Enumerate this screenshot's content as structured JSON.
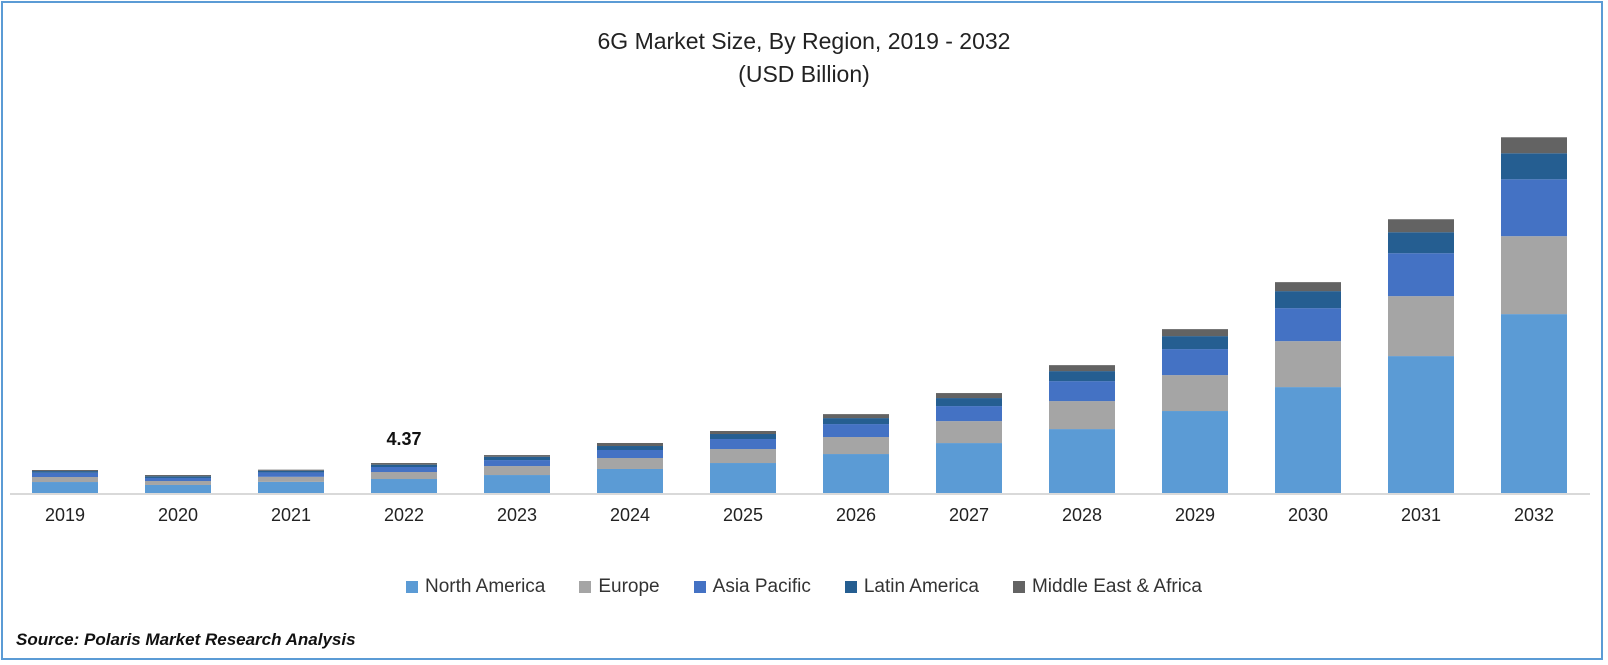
{
  "chart_data": {
    "type": "bar",
    "stacked": true,
    "title": "6G Market Size, By Region, 2019 - 2032",
    "subtitle": "(USD Billion)",
    "categories": [
      "2019",
      "2020",
      "2021",
      "2022",
      "2023",
      "2024",
      "2025",
      "2026",
      "2027",
      "2028",
      "2029",
      "2030",
      "2031",
      "2032"
    ],
    "series": [
      {
        "name": "North America",
        "color": "#5B9BD5",
        "values": [
          1.6,
          1.17,
          1.62,
          2.04,
          2.62,
          3.5,
          4.37,
          5.68,
          7.28,
          9.32,
          11.95,
          15.44,
          19.96,
          26.08
        ]
      },
      {
        "name": "Europe",
        "color": "#A5A5A5",
        "values": [
          0.73,
          0.58,
          0.74,
          1.02,
          1.31,
          1.6,
          2.04,
          2.48,
          3.2,
          4.08,
          5.24,
          6.7,
          8.74,
          11.36
        ]
      },
      {
        "name": "Asia Pacific",
        "color": "#4472C4",
        "values": [
          0.63,
          0.44,
          0.64,
          0.73,
          0.87,
          1.17,
          1.46,
          1.89,
          2.19,
          2.91,
          3.79,
          4.81,
          6.26,
          8.3
        ]
      },
      {
        "name": "Latin America",
        "color": "#255E91",
        "values": [
          0.24,
          0.24,
          0.25,
          0.34,
          0.49,
          0.58,
          0.73,
          0.87,
          1.17,
          1.46,
          1.89,
          2.48,
          3.06,
          3.79
        ]
      },
      {
        "name": "Middle East & Africa",
        "color": "#636363",
        "values": [
          0.15,
          0.19,
          0.15,
          0.24,
          0.24,
          0.44,
          0.44,
          0.58,
          0.73,
          0.87,
          1.02,
          1.31,
          1.89,
          2.33
        ]
      }
    ],
    "annotations": [
      {
        "category": "2022",
        "text": "4.37"
      }
    ],
    "xlabel": "",
    "ylabel": "",
    "ylim": [
      0,
      52
    ],
    "y_axis_visible": false,
    "grid": false,
    "legend_position": "bottom"
  },
  "source": "Source: Polaris Market Research Analysis"
}
